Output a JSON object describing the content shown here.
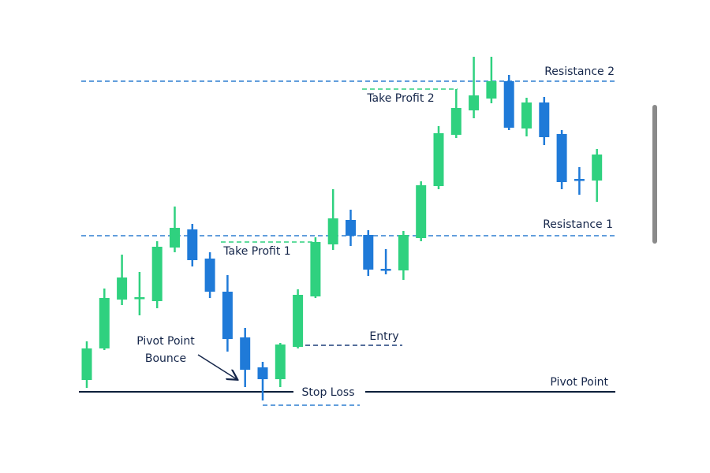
{
  "chart_data": {
    "type": "candlestick",
    "ylim": [
      0,
      480
    ],
    "up_color": "#2fd17f",
    "down_color": "#1f7ad8",
    "open": [
      58,
      98,
      160,
      161,
      158,
      226,
      249,
      212,
      170,
      112,
      74,
      59,
      100,
      164,
      230,
      261,
      242,
      199,
      197,
      238,
      304,
      369,
      400,
      415,
      437,
      377,
      410,
      370,
      313,
      311
    ],
    "close": [
      98,
      162,
      188,
      163,
      227,
      251,
      210,
      170,
      110,
      71,
      59,
      103,
      166,
      233,
      263,
      241,
      198,
      197,
      242,
      305,
      371,
      403,
      419,
      437,
      378,
      410,
      366,
      309,
      311,
      344
    ],
    "high": [
      107,
      174,
      217,
      195,
      234,
      278,
      256,
      220,
      191,
      124,
      81,
      105,
      173,
      239,
      300,
      274,
      248,
      224,
      247,
      310,
      380,
      427,
      468,
      468,
      445,
      416,
      417,
      375,
      328,
      351
    ],
    "low": [
      48,
      96,
      153,
      140,
      149,
      220,
      202,
      162,
      94,
      49,
      32,
      49,
      98,
      162,
      223,
      228,
      190,
      192,
      185,
      234,
      300,
      365,
      390,
      409,
      375,
      367,
      356,
      300,
      293,
      284
    ],
    "levels": [
      {
        "name": "Resistance 2",
        "value": 437,
        "color": "#2f7fd0",
        "style": "dashed"
      },
      {
        "name": "Resistance 1",
        "value": 241,
        "color": "#2f7fd0",
        "style": "dashed"
      },
      {
        "name": "Pivot Point",
        "value": 43,
        "color": "#0b1f3a",
        "style": "solid"
      },
      {
        "name": "Take Profit 1",
        "value": 233,
        "color": "#2fd17f",
        "style": "dashed"
      },
      {
        "name": "Take Profit 2",
        "value": 427,
        "color": "#2fd17f",
        "style": "dashed"
      },
      {
        "name": "Entry",
        "value": 102,
        "color": "#1d3f7a",
        "style": "dashed"
      },
      {
        "name": "Stop Loss",
        "value": 26,
        "color": "#2f7fd0",
        "style": "dashed"
      }
    ],
    "annotation": [
      "Pivot Point",
      "Bounce"
    ]
  }
}
